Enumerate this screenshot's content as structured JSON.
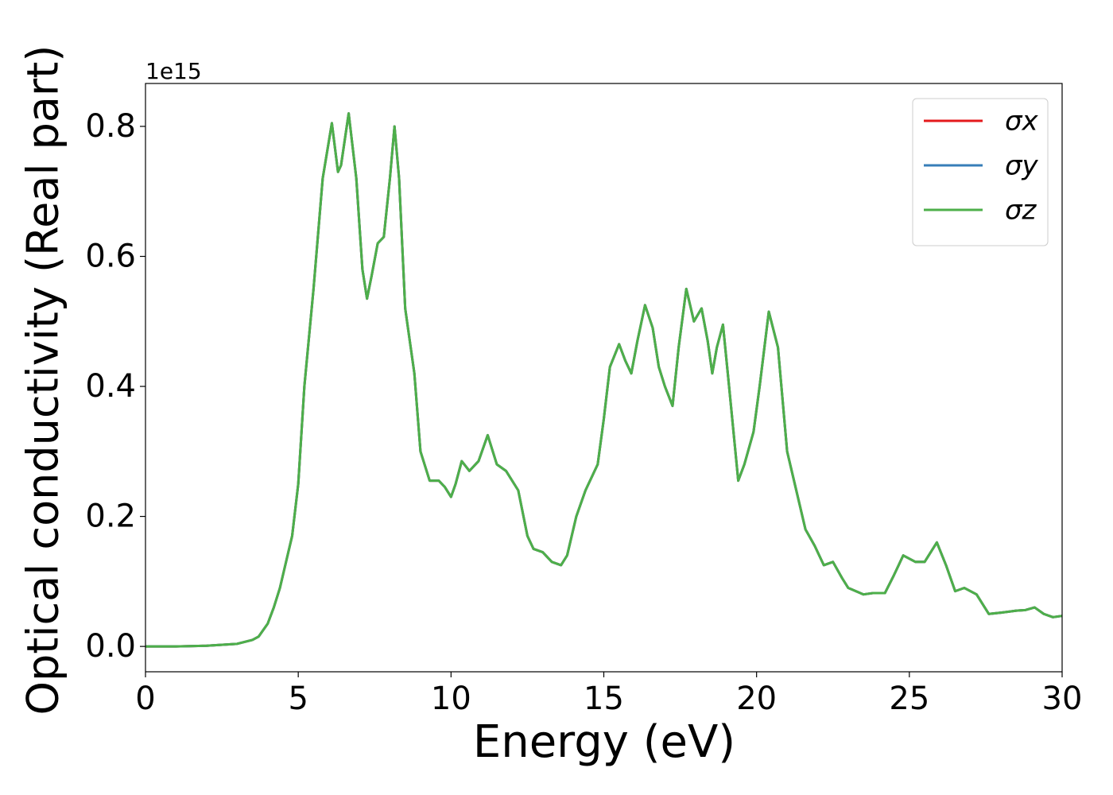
{
  "chart_data": {
    "type": "line",
    "xlabel": "Energy (eV)",
    "ylabel": "Optical conductivity (Real part)",
    "y_offset_label": "1e15",
    "xlim": [
      0,
      30
    ],
    "xticks": [
      0,
      5,
      10,
      15,
      20,
      25,
      30
    ],
    "ylim": [
      -0.039,
      0.866
    ],
    "yticks": [
      {
        "value": 0,
        "label": "0.0"
      },
      0.2,
      0.4,
      0.6,
      0.8
    ],
    "grid": false,
    "legend": "upper right",
    "x": [
      0,
      1,
      2,
      3,
      3.5,
      3.7,
      4.0,
      4.2,
      4.4,
      4.6,
      4.8,
      5.0,
      5.2,
      5.5,
      5.8,
      6.1,
      6.3,
      6.4,
      6.65,
      6.9,
      7.1,
      7.25,
      7.4,
      7.6,
      7.8,
      8.0,
      8.15,
      8.3,
      8.5,
      8.8,
      9.0,
      9.3,
      9.6,
      9.8,
      10.0,
      10.15,
      10.35,
      10.6,
      10.9,
      11.2,
      11.5,
      11.8,
      12.2,
      12.5,
      12.7,
      13.0,
      13.3,
      13.6,
      13.8,
      14.1,
      14.4,
      14.8,
      15.0,
      15.2,
      15.5,
      15.7,
      15.9,
      16.1,
      16.35,
      16.6,
      16.8,
      17.0,
      17.25,
      17.45,
      17.7,
      17.95,
      18.2,
      18.4,
      18.55,
      18.7,
      18.9,
      19.1,
      19.4,
      19.6,
      19.9,
      20.1,
      20.4,
      20.7,
      21.0,
      21.3,
      21.6,
      21.9,
      22.2,
      22.5,
      22.8,
      23.0,
      23.5,
      23.8,
      24.2,
      24.5,
      24.8,
      25.2,
      25.5,
      25.9,
      26.2,
      26.5,
      26.8,
      27.2,
      27.6,
      28.0,
      28.5,
      28.8,
      29.1,
      29.4,
      29.7,
      30
    ],
    "series": [
      {
        "name": "σx",
        "color": "#e41a1c",
        "values": [
          0,
          0,
          0.001,
          0.004,
          0.01,
          0.015,
          0.035,
          0.06,
          0.09,
          0.13,
          0.17,
          0.25,
          0.4,
          0.55,
          0.72,
          0.805,
          0.73,
          0.74,
          0.82,
          0.72,
          0.58,
          0.535,
          0.57,
          0.62,
          0.63,
          0.72,
          0.8,
          0.72,
          0.52,
          0.42,
          0.3,
          0.255,
          0.255,
          0.245,
          0.23,
          0.25,
          0.285,
          0.27,
          0.285,
          0.325,
          0.28,
          0.27,
          0.24,
          0.17,
          0.15,
          0.145,
          0.13,
          0.125,
          0.14,
          0.2,
          0.24,
          0.28,
          0.35,
          0.43,
          0.465,
          0.44,
          0.42,
          0.47,
          0.525,
          0.49,
          0.43,
          0.4,
          0.37,
          0.46,
          0.55,
          0.5,
          0.52,
          0.47,
          0.42,
          0.46,
          0.495,
          0.4,
          0.255,
          0.28,
          0.33,
          0.4,
          0.515,
          0.46,
          0.3,
          0.24,
          0.18,
          0.155,
          0.125,
          0.13,
          0.105,
          0.09,
          0.08,
          0.082,
          0.082,
          0.11,
          0.14,
          0.13,
          0.13,
          0.16,
          0.125,
          0.085,
          0.09,
          0.08,
          0.05,
          0.052,
          0.055,
          0.056,
          0.06,
          0.05,
          0.045,
          0.047
        ]
      },
      {
        "name": "σy",
        "color": "#377eb8",
        "values": [
          0,
          0,
          0.001,
          0.004,
          0.01,
          0.015,
          0.035,
          0.06,
          0.09,
          0.13,
          0.17,
          0.25,
          0.4,
          0.55,
          0.72,
          0.805,
          0.73,
          0.74,
          0.82,
          0.72,
          0.58,
          0.535,
          0.57,
          0.62,
          0.63,
          0.72,
          0.8,
          0.72,
          0.52,
          0.42,
          0.3,
          0.255,
          0.255,
          0.245,
          0.23,
          0.25,
          0.285,
          0.27,
          0.285,
          0.325,
          0.28,
          0.27,
          0.24,
          0.17,
          0.15,
          0.145,
          0.13,
          0.125,
          0.14,
          0.2,
          0.24,
          0.28,
          0.35,
          0.43,
          0.465,
          0.44,
          0.42,
          0.47,
          0.525,
          0.49,
          0.43,
          0.4,
          0.37,
          0.46,
          0.55,
          0.5,
          0.52,
          0.47,
          0.42,
          0.46,
          0.495,
          0.4,
          0.255,
          0.28,
          0.33,
          0.4,
          0.515,
          0.46,
          0.3,
          0.24,
          0.18,
          0.155,
          0.125,
          0.13,
          0.105,
          0.09,
          0.08,
          0.082,
          0.082,
          0.11,
          0.14,
          0.13,
          0.13,
          0.16,
          0.125,
          0.085,
          0.09,
          0.08,
          0.05,
          0.052,
          0.055,
          0.056,
          0.06,
          0.05,
          0.045,
          0.047
        ]
      },
      {
        "name": "σz",
        "color": "#4daf4a",
        "values": [
          0,
          0,
          0.001,
          0.004,
          0.01,
          0.015,
          0.035,
          0.06,
          0.09,
          0.13,
          0.17,
          0.25,
          0.4,
          0.55,
          0.72,
          0.805,
          0.73,
          0.74,
          0.82,
          0.72,
          0.58,
          0.535,
          0.57,
          0.62,
          0.63,
          0.72,
          0.8,
          0.72,
          0.52,
          0.42,
          0.3,
          0.255,
          0.255,
          0.245,
          0.23,
          0.25,
          0.285,
          0.27,
          0.285,
          0.325,
          0.28,
          0.27,
          0.24,
          0.17,
          0.15,
          0.145,
          0.13,
          0.125,
          0.14,
          0.2,
          0.24,
          0.28,
          0.35,
          0.43,
          0.465,
          0.44,
          0.42,
          0.47,
          0.525,
          0.49,
          0.43,
          0.4,
          0.37,
          0.46,
          0.55,
          0.5,
          0.52,
          0.47,
          0.42,
          0.46,
          0.495,
          0.4,
          0.255,
          0.28,
          0.33,
          0.4,
          0.515,
          0.46,
          0.3,
          0.24,
          0.18,
          0.155,
          0.125,
          0.13,
          0.105,
          0.09,
          0.08,
          0.082,
          0.082,
          0.11,
          0.14,
          0.13,
          0.13,
          0.16,
          0.125,
          0.085,
          0.09,
          0.08,
          0.05,
          0.052,
          0.055,
          0.056,
          0.06,
          0.05,
          0.045,
          0.047
        ]
      }
    ]
  }
}
